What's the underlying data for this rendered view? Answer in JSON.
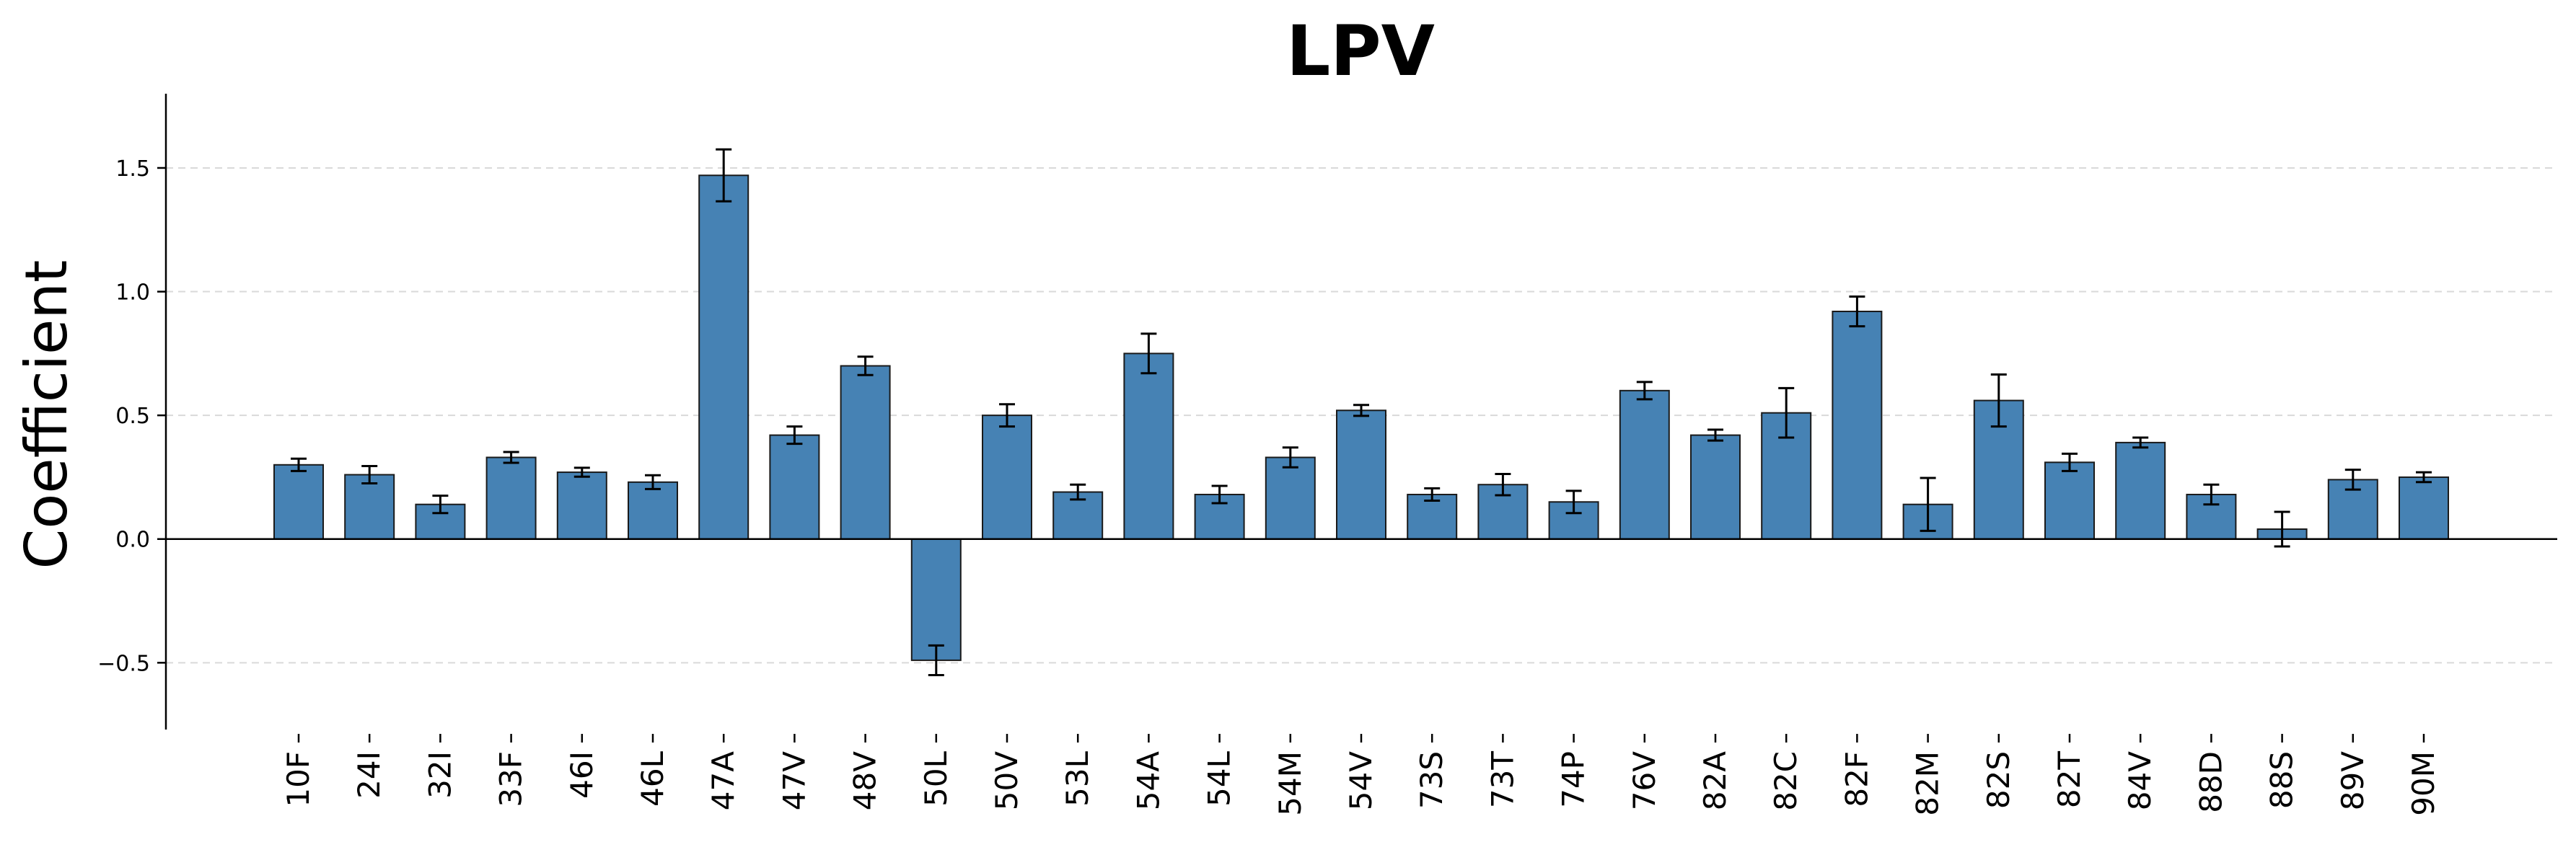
{
  "chart_data": {
    "type": "bar",
    "title": "LPV",
    "xlabel": "",
    "ylabel": "Coefficient",
    "ylim": [
      -0.77,
      1.8
    ],
    "yticks": [
      -0.5,
      0.0,
      0.5,
      1.0,
      1.5
    ],
    "ytick_labels": [
      "−0.5",
      "0.0",
      "0.5",
      "1.0",
      "1.5"
    ],
    "grid": "horizontal dashed",
    "categories": [
      "10F",
      "24I",
      "32I",
      "33F",
      "46I",
      "46L",
      "47A",
      "47V",
      "48V",
      "50L",
      "50V",
      "53L",
      "54A",
      "54L",
      "54M",
      "54V",
      "73S",
      "73T",
      "74P",
      "76V",
      "82A",
      "82C",
      "82F",
      "82M",
      "82S",
      "82T",
      "84V",
      "88D",
      "88S",
      "89V",
      "90M"
    ],
    "values": [
      0.3,
      0.26,
      0.14,
      0.33,
      0.27,
      0.23,
      1.47,
      0.42,
      0.7,
      -0.49,
      0.5,
      0.19,
      0.75,
      0.18,
      0.33,
      0.52,
      0.18,
      0.22,
      0.15,
      0.6,
      0.42,
      0.51,
      0.92,
      0.14,
      0.56,
      0.31,
      0.39,
      0.18,
      0.04,
      0.24,
      0.25
    ],
    "errors": [
      0.025,
      0.035,
      0.035,
      0.022,
      0.018,
      0.028,
      0.105,
      0.035,
      0.037,
      0.06,
      0.045,
      0.03,
      0.08,
      0.035,
      0.04,
      0.022,
      0.025,
      0.043,
      0.045,
      0.035,
      0.022,
      0.1,
      0.06,
      0.107,
      0.105,
      0.035,
      0.02,
      0.04,
      0.07,
      0.04,
      0.02
    ],
    "colors": {
      "bar_fill": "#4682b4",
      "bar_edge": "#1a1a1a",
      "error_bar": "#000000",
      "grid": "#d9d9d9",
      "axis": "#000000"
    }
  }
}
